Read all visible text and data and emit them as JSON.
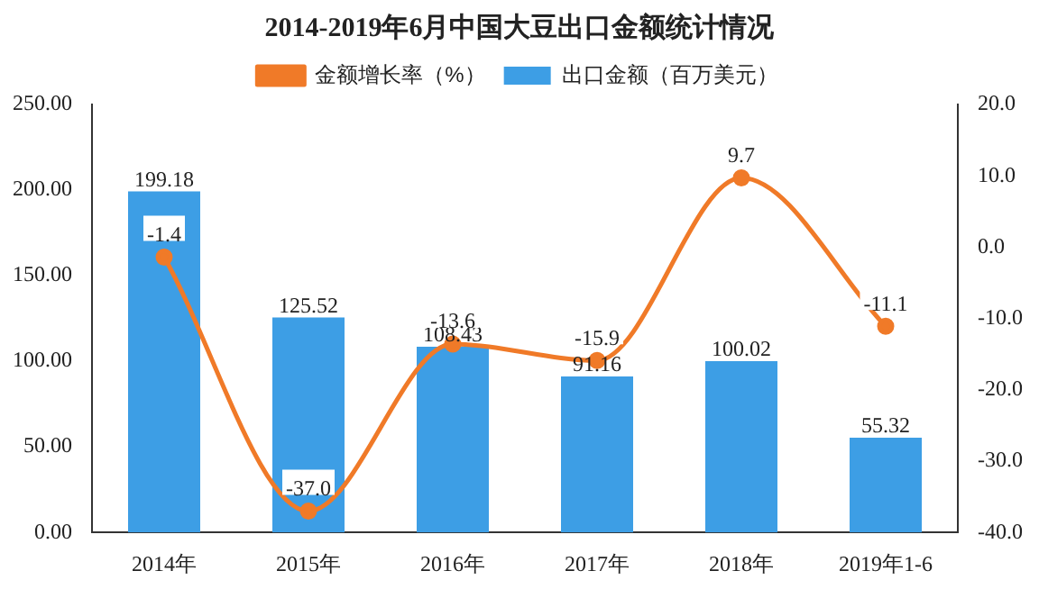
{
  "chart_data": {
    "type": "bar",
    "title": "2014-2019年6月中国大豆出口金额统计情况",
    "categories": [
      "2014年",
      "2015年",
      "2016年",
      "2017年",
      "2018年",
      "2019年1-6"
    ],
    "series": [
      {
        "name": "出口金额（百万美元）",
        "color": "#3d9ee5",
        "values": [
          199.18,
          125.52,
          108.43,
          91.16,
          100.02,
          55.32
        ],
        "value_labels": [
          "199.18",
          "125.52",
          "108.43",
          "91.16",
          "100.02",
          "55.32"
        ]
      },
      {
        "name": "金额增长率（%）",
        "type": "line",
        "axis": "y2",
        "color": "#f07a28",
        "marker": "circle",
        "values": [
          -1.4,
          -37.0,
          -13.6,
          -15.9,
          9.7,
          -11.1
        ],
        "value_labels": [
          "-1.4",
          "-37.0",
          "-13.6",
          "-15.9",
          "9.7",
          "-11.1"
        ]
      }
    ],
    "ylim": [
      0,
      250
    ],
    "yticks": [
      {
        "value": 0,
        "label": "0.00"
      },
      {
        "value": 50,
        "label": "50.00"
      },
      {
        "value": 100,
        "label": "100.00"
      },
      {
        "value": 150,
        "label": "150.00"
      },
      {
        "value": 200,
        "label": "200.00"
      },
      {
        "value": 250,
        "label": "250.00"
      }
    ],
    "y2lim": [
      -40,
      20
    ],
    "y2ticks": [
      {
        "value": -40,
        "label": "-40.0"
      },
      {
        "value": -30,
        "label": "-30.0"
      },
      {
        "value": -20,
        "label": "-20.0"
      },
      {
        "value": -10,
        "label": "-10.0"
      },
      {
        "value": 0,
        "label": "0.0"
      },
      {
        "value": 10,
        "label": "10.0"
      },
      {
        "value": 20,
        "label": "20.0"
      }
    ],
    "legend": "top",
    "grid": false
  }
}
